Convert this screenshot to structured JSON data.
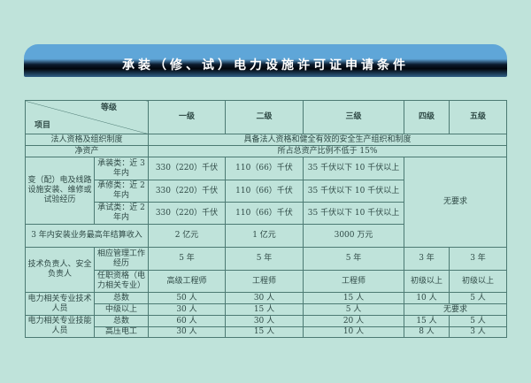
{
  "title": "承装（修、试）电力设施许可证申请条件",
  "header": {
    "grade": "等级",
    "item": "项目",
    "levels": [
      "一级",
      "二级",
      "三级",
      "四级",
      "五级"
    ]
  },
  "legal": {
    "label": "法人资格及组织制度",
    "value": "具备法人资格和健全有效的安全生产组织和制度"
  },
  "net_assets": {
    "label": "净资产",
    "value": "所占总资产比例不低于 15%"
  },
  "experience": {
    "label": "变（配）电及线路设施安装、维修或试验经历",
    "rows": [
      {
        "sub": "承装类：近 3 年内",
        "l1": "330（220）千伏",
        "l2": "110（66）千伏",
        "l3": "35 千伏以下 10 千伏以上"
      },
      {
        "sub": "承修类：近 2 年内",
        "l1": "330（220）千伏",
        "l2": "110（66）千伏",
        "l3": "35 千伏以下 10 千伏以上"
      },
      {
        "sub": "承试类：近 2 年内",
        "l1": "330（220）千伏",
        "l2": "110（66）千伏",
        "l3": "35 千伏以下 10 千伏以上"
      }
    ],
    "l45": "无要求"
  },
  "income": {
    "label": "3 年内安装业务最高年结算收入",
    "l1": "2 亿元",
    "l2": "1 亿元",
    "l3": "3000 万元"
  },
  "leaders": {
    "label": "技术负责人、安全负责人",
    "rows": [
      {
        "sub": "相应管理工作经历",
        "values": [
          "5 年",
          "5 年",
          "5 年",
          "3 年",
          "3 年"
        ]
      },
      {
        "sub": "任职资格（电力相关专业）",
        "values": [
          "高级工程师",
          "工程师",
          "工程师",
          "初级以上",
          "初级以上"
        ]
      }
    ]
  },
  "tech_staff": {
    "label": "电力相关专业技术人员",
    "rows": [
      {
        "sub": "总数",
        "values": [
          "50 人",
          "30 人",
          "15 人",
          "10 人",
          "5 人"
        ]
      },
      {
        "sub": "中级以上",
        "values": [
          "30 人",
          "15 人",
          "5 人"
        ],
        "l45": "无要求"
      }
    ]
  },
  "skill_staff": {
    "label": "电力相关专业技能人员",
    "rows": [
      {
        "sub": "总数",
        "values": [
          "60 人",
          "30 人",
          "20 人",
          "15 人",
          "5 人"
        ]
      },
      {
        "sub": "高压电工",
        "values": [
          "30 人",
          "15 人",
          "10 人",
          "8 人",
          "3 人"
        ]
      }
    ]
  }
}
